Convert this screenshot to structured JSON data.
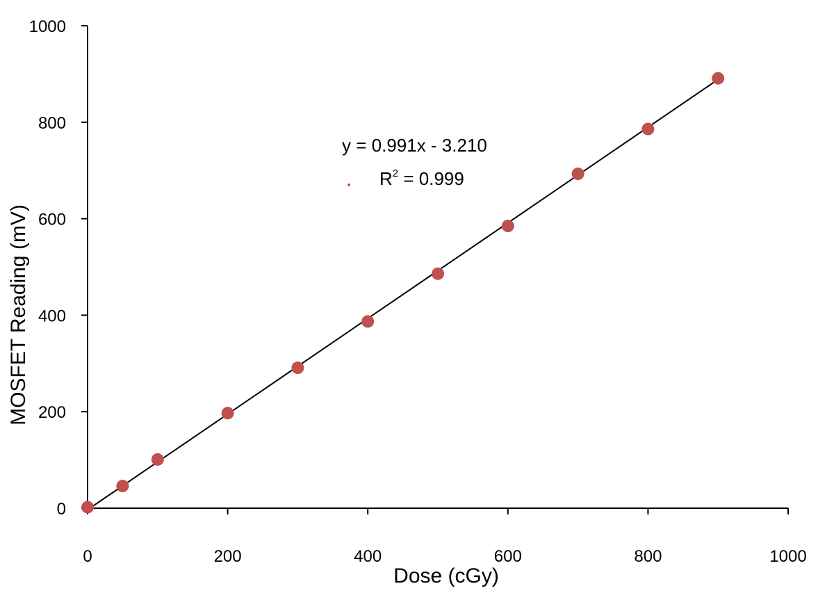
{
  "chart_data": {
    "type": "scatter",
    "title": "",
    "xlabel": "Dose (cGy)",
    "ylabel": "MOSFET Reading (mV)",
    "xlim": [
      0,
      1000
    ],
    "ylim": [
      0,
      1000
    ],
    "xticks": [
      0,
      200,
      400,
      600,
      800,
      1000
    ],
    "yticks": [
      0,
      200,
      400,
      600,
      800,
      1000
    ],
    "xtick_labels": [
      "0",
      "200",
      "400",
      "600",
      "800",
      "1000"
    ],
    "ytick_labels": [
      "0",
      "200",
      "400",
      "600",
      "800",
      "1000"
    ],
    "grid": false,
    "series": [
      {
        "x": [
          0,
          50,
          100,
          200,
          300,
          400,
          500,
          600,
          700,
          800,
          900
        ],
        "y": [
          2,
          46,
          101,
          197,
          291,
          387,
          486,
          585,
          693,
          786,
          891
        ]
      }
    ],
    "trendline": {
      "type": "linear",
      "slope": 0.991,
      "intercept": -3.21,
      "x_range": [
        0,
        900
      ]
    },
    "annotations": {
      "equation": "y = 0.991x - 3.210",
      "r2_prefix": "R",
      "r2_superscript": "2",
      "r2_value": " = 0.999"
    },
    "colors": {
      "marker": "#c0504d",
      "trendline": "#000000",
      "axis": "#000000"
    }
  }
}
